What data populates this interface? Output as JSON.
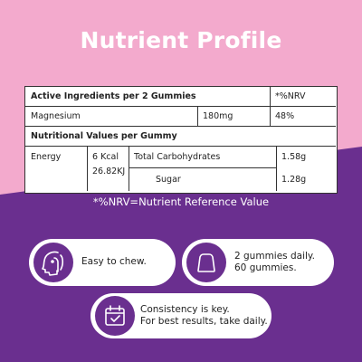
{
  "title": "Nutrient Profile",
  "colors": {
    "pink": "#f3aacd",
    "purple": "#6a2f8f",
    "white": "#ffffff",
    "text": "#222222"
  },
  "table": {
    "header": {
      "label": "Active Ingredients per 2 Gummies",
      "nrv_label": "*%NRV"
    },
    "magnesium": {
      "label": "Magnesium",
      "amount": "180mg",
      "nrv": "48%"
    },
    "nutritional_header": "Nutritional Values per Gummy",
    "energy": {
      "label": "Energy",
      "kcal": "6 Kcal",
      "kj": "26.82KJ"
    },
    "carbs": {
      "label": "Total Carbohydrates",
      "value": "1.58g"
    },
    "sugar": {
      "label": "Sugar",
      "value": "1.28g"
    }
  },
  "footnote": "*%NRV=Nutrient Reference Value",
  "features": [
    {
      "icon": "throat-icon",
      "line1": "Easy to chew.",
      "line2": ""
    },
    {
      "icon": "gummy-icon",
      "line1": "2 gummies daily.",
      "line2": "60 gummies."
    },
    {
      "icon": "calendar-check-icon",
      "line1": "Consistency is key.",
      "line2": "For best results, take daily."
    }
  ]
}
